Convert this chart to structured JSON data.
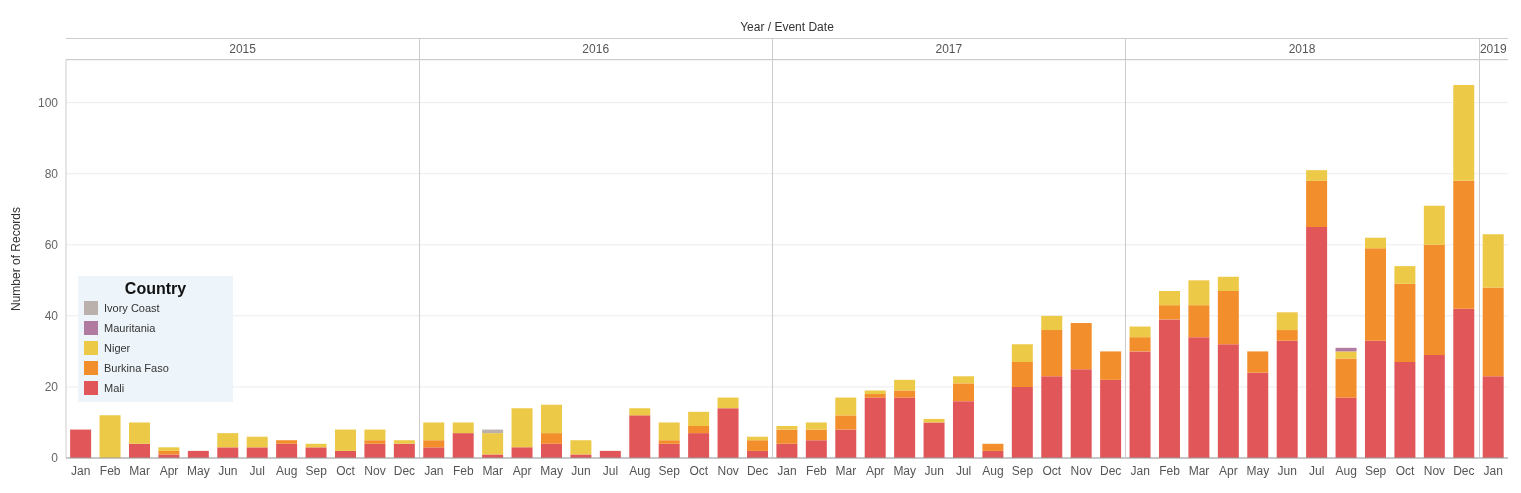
{
  "chart_data": {
    "type": "bar",
    "stacked": true,
    "xlabel": "Year / Event Date",
    "ylabel": "Number of Records",
    "legend_title": "Country",
    "legend": "left",
    "grid": "y",
    "categories": [
      "Jan",
      "Feb",
      "Mar",
      "Apr",
      "May",
      "Jun",
      "Jul",
      "Aug",
      "Sep",
      "Oct",
      "Nov",
      "Dec",
      "Jan",
      "Feb",
      "Mar",
      "Apr",
      "May",
      "Jun",
      "Jul",
      "Aug",
      "Sep",
      "Oct",
      "Nov",
      "Dec",
      "Jan",
      "Feb",
      "Mar",
      "Apr",
      "May",
      "Jun",
      "Jul",
      "Aug",
      "Sep",
      "Oct",
      "Nov",
      "Dec",
      "Jan",
      "Feb",
      "Mar",
      "Apr",
      "May",
      "Jun",
      "Jul",
      "Aug",
      "Sep",
      "Oct",
      "Nov",
      "Dec",
      "Jan"
    ],
    "annotations": [
      "2015",
      "2016",
      "2017",
      "2018",
      "2019"
    ],
    "ylim": [
      0,
      112
    ],
    "yticks": [
      0,
      20,
      40,
      60,
      80,
      100
    ],
    "series": [
      {
        "name": "Mali",
        "color": "#e15759",
        "values": [
          8,
          0,
          4,
          1,
          2,
          3,
          3,
          4,
          3,
          2,
          4,
          4,
          3,
          7,
          1,
          3,
          4,
          1,
          2,
          12,
          4,
          7,
          14,
          2,
          4,
          5,
          8,
          17,
          17,
          10,
          16,
          2,
          20,
          23,
          25,
          22,
          30,
          39,
          34,
          32,
          24,
          33,
          65,
          17,
          33,
          27,
          29,
          42,
          23
        ]
      },
      {
        "name": "Burkina Faso",
        "color": "#f28e2b",
        "values": [
          0,
          0,
          0,
          1,
          0,
          0,
          0,
          1,
          0,
          0,
          1,
          0,
          2,
          0,
          0,
          0,
          3,
          0,
          0,
          0,
          1,
          2,
          0,
          3,
          4,
          3,
          4,
          1,
          2,
          0,
          5,
          2,
          7,
          13,
          13,
          8,
          4,
          4,
          9,
          15,
          6,
          3,
          13,
          11,
          26,
          22,
          31,
          36,
          25
        ]
      },
      {
        "name": "Niger",
        "color": "#edc948",
        "values": [
          0,
          12,
          6,
          1,
          0,
          4,
          3,
          0,
          1,
          6,
          3,
          1,
          5,
          3,
          6,
          11,
          8,
          4,
          0,
          2,
          5,
          4,
          3,
          1,
          1,
          2,
          5,
          1,
          3,
          1,
          2,
          0,
          5,
          4,
          0,
          0,
          3,
          4,
          7,
          4,
          0,
          5,
          3,
          2,
          3,
          5,
          11,
          27,
          15
        ]
      },
      {
        "name": "Mauritania",
        "color": "#b07aa1",
        "values": [
          0,
          0,
          0,
          0,
          0,
          0,
          0,
          0,
          0,
          0,
          0,
          0,
          0,
          0,
          0,
          0,
          0,
          0,
          0,
          0,
          0,
          0,
          0,
          0,
          0,
          0,
          0,
          0,
          0,
          0,
          0,
          0,
          0,
          0,
          0,
          0,
          0,
          0,
          0,
          0,
          0,
          0,
          0,
          1,
          0,
          0,
          0,
          0,
          0
        ]
      },
      {
        "name": "Ivory Coast",
        "color": "#bab0ac",
        "values": [
          0,
          0,
          0,
          0,
          0,
          0,
          0,
          0,
          0,
          0,
          0,
          0,
          0,
          0,
          1,
          0,
          0,
          0,
          0,
          0,
          0,
          0,
          0,
          0,
          0,
          0,
          0,
          0,
          0,
          0,
          0,
          0,
          0,
          0,
          0,
          0,
          0,
          0,
          0,
          0,
          0,
          0,
          0,
          0,
          0,
          0,
          0,
          0,
          0
        ]
      }
    ]
  }
}
